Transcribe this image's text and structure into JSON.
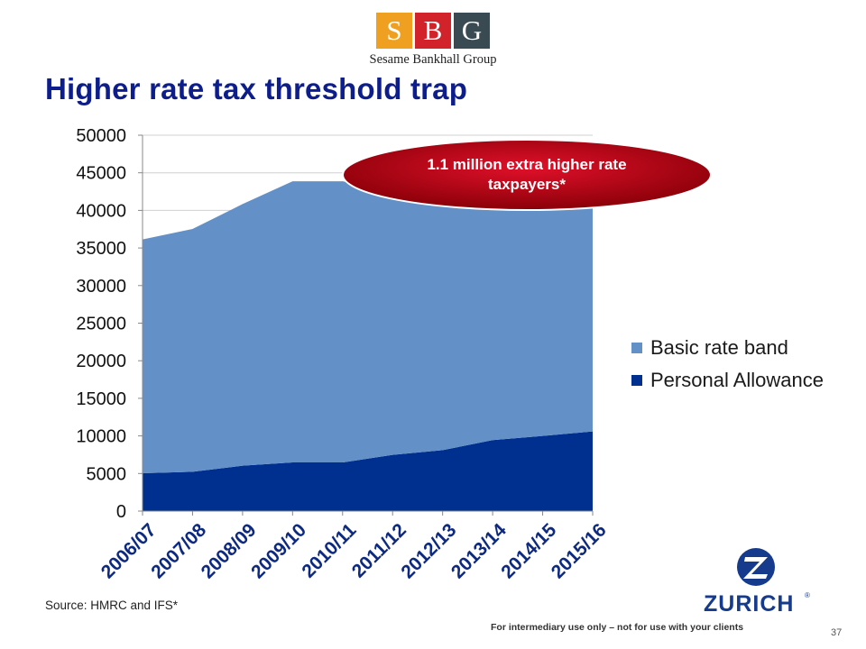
{
  "logo": {
    "letters": [
      {
        "char": "S",
        "color": "#f0a021"
      },
      {
        "char": "B",
        "color": "#d2232a"
      },
      {
        "char": "G",
        "color": "#3a4a53"
      }
    ],
    "name": "Sesame Bankhall Group"
  },
  "title": "Higher rate tax threshold trap",
  "callout": {
    "text": "1.1 million extra higher rate taxpayers*",
    "color": "#c0000b"
  },
  "source": "Source: HMRC and IFS*",
  "footer_note": "For intermediary use only – not for use with your clients",
  "page_number": "37",
  "zurich": {
    "name": "ZURICH",
    "registered": "®",
    "icon": "zurich-z-logo-icon",
    "color": "#163a8c"
  },
  "chart_data": {
    "type": "area",
    "stacked": true,
    "categories": [
      "2006/07",
      "2007/08",
      "2008/09",
      "2009/10",
      "2010/11",
      "2011/12",
      "2012/13",
      "2013/14",
      "2014/15",
      "2015/16"
    ],
    "series": [
      {
        "name": "Personal Allowance",
        "color": "#00308f",
        "values": [
          5035,
          5225,
          6035,
          6475,
          6475,
          7475,
          8105,
          9440,
          10000,
          10600
        ]
      },
      {
        "name": "Basic rate band",
        "color": "#6490c8",
        "values": [
          31100,
          32300,
          34800,
          37400,
          37400,
          35000,
          34370,
          32010,
          31865,
          31785
        ]
      }
    ],
    "yticks": [
      0,
      5000,
      10000,
      15000,
      20000,
      25000,
      30000,
      35000,
      40000,
      45000,
      50000
    ],
    "ylim": [
      0,
      50000
    ],
    "grid": true,
    "legend": "right"
  }
}
